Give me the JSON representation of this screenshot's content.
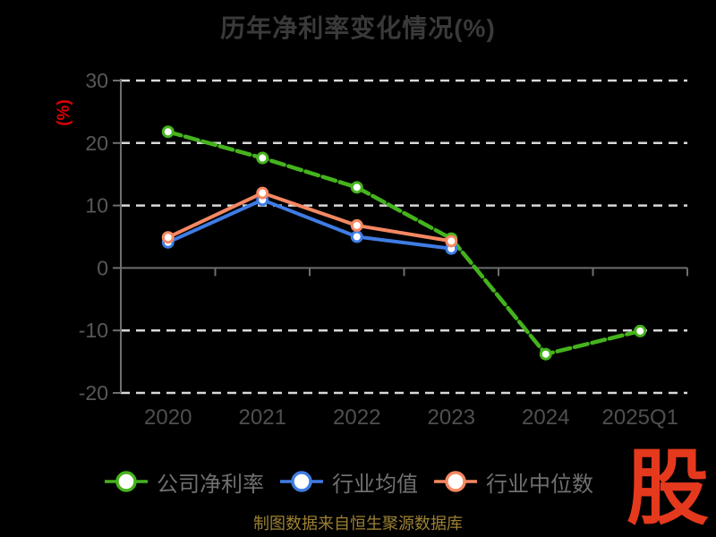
{
  "title": "历年净利率变化情况(%)",
  "y_axis_label": "(%)",
  "source_note": "制图数据来自恒生聚源数据库",
  "logo_text": "股",
  "colors": {
    "background": "#000000",
    "title_text": "#3a3a3a",
    "axis_line": "#6e6e6e",
    "gridline": "#d8d8d8",
    "y_tick_text": "#585858",
    "x_tick_text": "#4f4f4f",
    "legend_text": "#6f6f6f",
    "y_axis_label_red": "#e00000",
    "source_text_gold": "#9c8033",
    "logo_red": "#e5391d"
  },
  "chart_data": {
    "type": "line",
    "categories": [
      "2020",
      "2021",
      "2022",
      "2023",
      "2024",
      "2025Q1"
    ],
    "series": [
      {
        "name": "公司净利率",
        "color": "#45b31d",
        "line_style": "dashed",
        "values": [
          21.8,
          17.6,
          12.9,
          4.7,
          -13.8,
          -10.1
        ]
      },
      {
        "name": "行业均值",
        "color": "#3f7ce4",
        "line_style": "solid",
        "values": [
          4.1,
          10.9,
          5.0,
          3.1,
          null,
          null
        ]
      },
      {
        "name": "行业中位数",
        "color": "#f58862",
        "line_style": "solid",
        "values": [
          4.9,
          12.0,
          6.8,
          4.3,
          null,
          null
        ]
      }
    ],
    "ylim": [
      -20,
      30
    ],
    "y_ticks": [
      30,
      20,
      10,
      0,
      -10,
      -20
    ],
    "grid": true,
    "gridline_style": "dashed",
    "legend_position": "bottom",
    "marker": "white-filled-circle"
  }
}
